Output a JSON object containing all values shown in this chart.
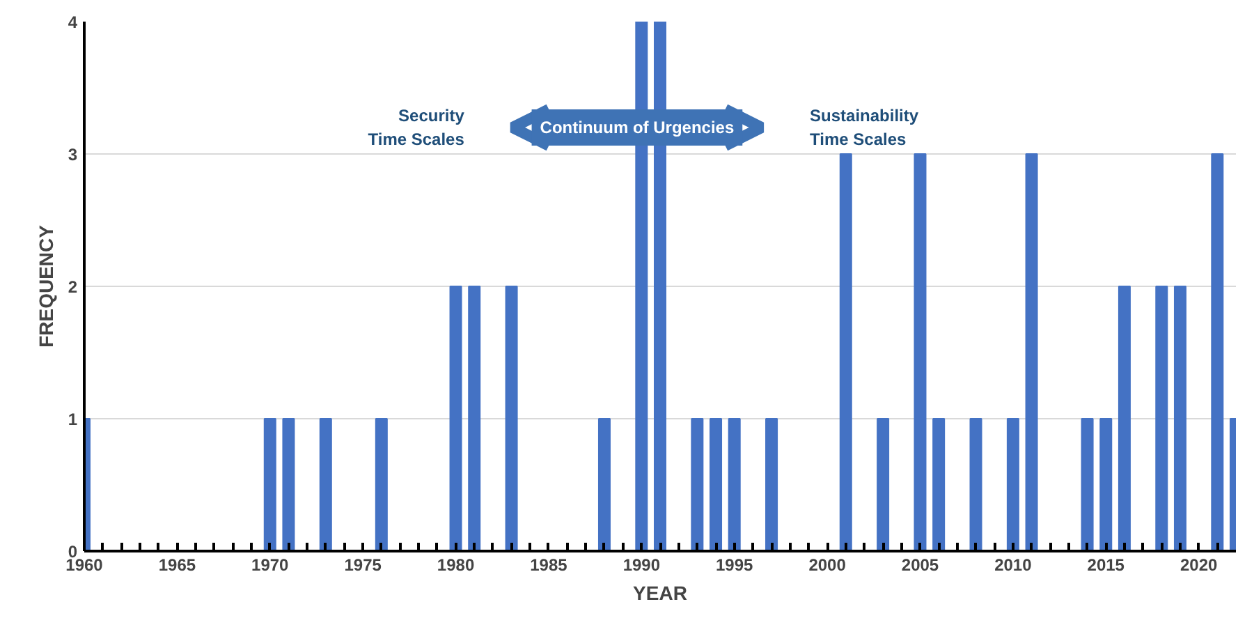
{
  "chart_data": {
    "type": "bar",
    "xlabel": "YEAR",
    "ylabel": "FREQUENCY",
    "x": [
      1960,
      1970,
      1971,
      1973,
      1976,
      1980,
      1981,
      1983,
      1988,
      1990,
      1991,
      1993,
      1994,
      1995,
      1997,
      2001,
      2003,
      2005,
      2006,
      2008,
      2010,
      2011,
      2014,
      2015,
      2016,
      2018,
      2019,
      2021,
      2022
    ],
    "values": [
      1,
      1,
      1,
      1,
      1,
      2,
      2,
      2,
      1,
      4,
      4,
      1,
      1,
      1,
      1,
      3,
      1,
      3,
      1,
      1,
      1,
      3,
      1,
      1,
      2,
      2,
      2,
      3,
      1
    ],
    "color": "#4472c4",
    "xlim": [
      1960,
      2022
    ],
    "xticks": [
      1960,
      {
        "value": 1961,
        "label": null
      },
      {
        "value": 1962,
        "label": null
      },
      {
        "value": 1963,
        "label": null
      },
      {
        "value": 1964,
        "label": null
      },
      1965,
      {
        "value": 1966,
        "label": null
      },
      {
        "value": 1967,
        "label": null
      },
      {
        "value": 1968,
        "label": null
      },
      {
        "value": 1969,
        "label": null
      },
      1970,
      {
        "value": 1971,
        "label": null
      },
      {
        "value": 1972,
        "label": null
      },
      {
        "value": 1973,
        "label": null
      },
      {
        "value": 1974,
        "label": null
      },
      1975,
      {
        "value": 1976,
        "label": null
      },
      {
        "value": 1977,
        "label": null
      },
      {
        "value": 1978,
        "label": null
      },
      {
        "value": 1979,
        "label": null
      },
      1980,
      {
        "value": 1981,
        "label": null
      },
      {
        "value": 1982,
        "label": null
      },
      {
        "value": 1983,
        "label": null
      },
      {
        "value": 1984,
        "label": null
      },
      1985,
      {
        "value": 1986,
        "label": null
      },
      {
        "value": 1987,
        "label": null
      },
      {
        "value": 1988,
        "label": null
      },
      {
        "value": 1989,
        "label": null
      },
      1990,
      {
        "value": 1991,
        "label": null
      },
      {
        "value": 1992,
        "label": null
      },
      {
        "value": 1993,
        "label": null
      },
      {
        "value": 1994,
        "label": null
      },
      1995,
      {
        "value": 1996,
        "label": null
      },
      {
        "value": 1997,
        "label": null
      },
      {
        "value": 1998,
        "label": null
      },
      {
        "value": 1999,
        "label": null
      },
      2000,
      {
        "value": 2001,
        "label": null
      },
      {
        "value": 2002,
        "label": null
      },
      {
        "value": 2003,
        "label": null
      },
      {
        "value": 2004,
        "label": null
      },
      2005,
      {
        "value": 2006,
        "label": null
      },
      {
        "value": 2007,
        "label": null
      },
      {
        "value": 2008,
        "label": null
      },
      {
        "value": 2009,
        "label": null
      },
      2010,
      {
        "value": 2011,
        "label": null
      },
      {
        "value": 2012,
        "label": null
      },
      {
        "value": 2013,
        "label": null
      },
      {
        "value": 2014,
        "label": null
      },
      2015,
      {
        "value": 2016,
        "label": null
      },
      {
        "value": 2017,
        "label": null
      },
      {
        "value": 2018,
        "label": null
      },
      {
        "value": 2019,
        "label": null
      },
      2020,
      {
        "value": 2021,
        "label": null
      }
    ],
    "ylim": [
      0,
      4
    ],
    "yticks": [
      0,
      1,
      2,
      3,
      4
    ],
    "grid": "y",
    "annotations": [
      "Continuum of Urgencies",
      "Security\nTime Scales",
      "Sustainability\nTime Scales"
    ]
  }
}
